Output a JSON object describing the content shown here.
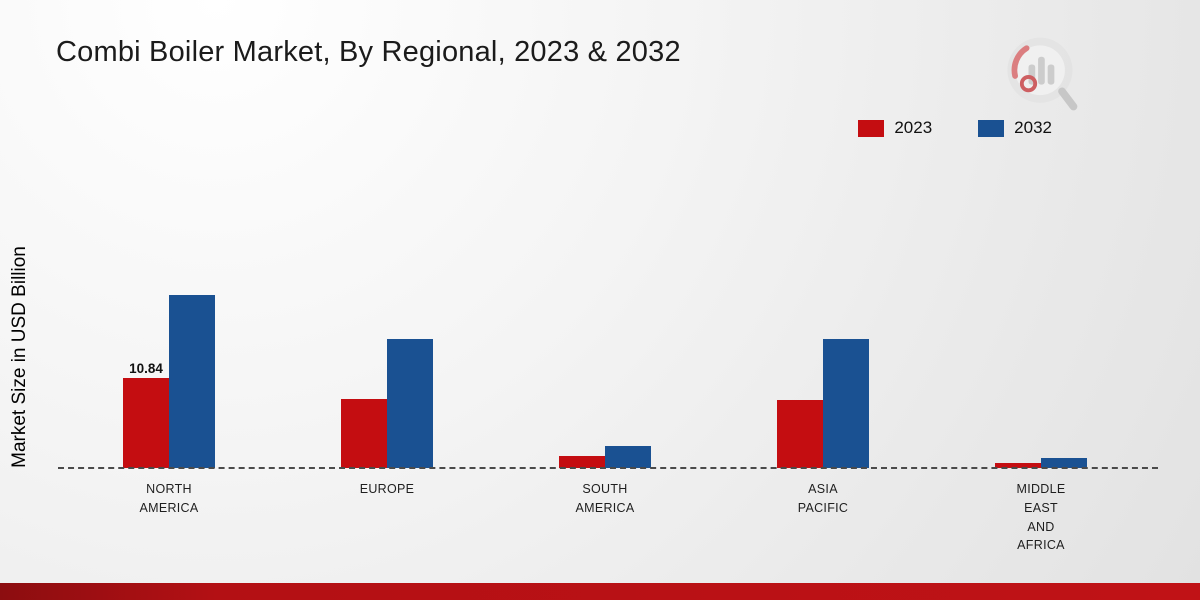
{
  "chart_data": {
    "type": "bar",
    "title": "Combi Boiler Market, By Regional, 2023 & 2032",
    "ylabel": "Market Size in USD Billion",
    "xlabel": "",
    "categories": [
      "NORTH\nAMERICA",
      "EUROPE",
      "SOUTH\nAMERICA",
      "ASIA\nPACIFIC",
      "MIDDLE\nEAST\nAND\nAFRICA"
    ],
    "series": [
      {
        "name": "2023",
        "color": "#c40d11",
        "values": [
          10.84,
          8.3,
          1.5,
          8.2,
          0.6
        ],
        "labels": [
          "10.84",
          "",
          "",
          "",
          ""
        ]
      },
      {
        "name": "2032",
        "color": "#1a5192",
        "values": [
          20.8,
          15.5,
          2.7,
          15.5,
          1.2
        ],
        "labels": [
          "",
          "",
          "",
          "",
          ""
        ]
      }
    ],
    "ylim": [
      0,
      24
    ],
    "grid": "off",
    "baseline_style": "dashed",
    "legend_position": "top-right"
  },
  "colors": {
    "series_2023": "#c40d11",
    "series_2032": "#1a5192",
    "footer_band": "#b31014"
  }
}
